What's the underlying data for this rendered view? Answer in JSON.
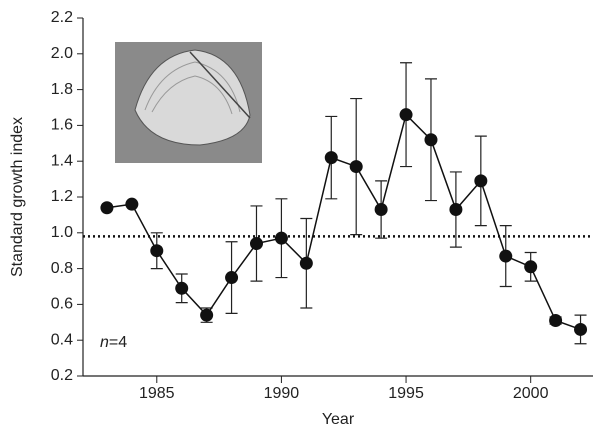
{
  "chart_data": {
    "type": "line_errorbar",
    "xlabel": "Year",
    "ylabel": "Standard growth index",
    "annotation": [
      "n",
      "=4"
    ],
    "x": [
      1983,
      1984,
      1985,
      1986,
      1987,
      1988,
      1989,
      1990,
      1991,
      1992,
      1993,
      1994,
      1995,
      1996,
      1997,
      1998,
      1999,
      2000,
      2001,
      2002
    ],
    "values": [
      1.14,
      1.16,
      0.9,
      0.69,
      0.54,
      0.75,
      0.94,
      0.97,
      0.83,
      1.42,
      1.37,
      1.13,
      1.66,
      1.52,
      1.13,
      1.29,
      0.87,
      0.81,
      0.51,
      0.46
    ],
    "errors": [
      null,
      null,
      0.1,
      0.08,
      0.04,
      0.2,
      0.21,
      0.22,
      0.25,
      0.23,
      0.38,
      0.16,
      0.29,
      0.34,
      0.21,
      0.25,
      0.17,
      0.08,
      0.02,
      0.08
    ],
    "color": "#111111",
    "reference_line": 0.98,
    "xlim": [
      1982.04,
      2002.5
    ],
    "xticks": [
      1985,
      1990,
      1995,
      2000
    ],
    "ylim": [
      0.2,
      2.2
    ],
    "yticks": [
      {
        "value": 0.2,
        "label": "0.2"
      },
      {
        "value": 0.4,
        "label": "0.4"
      },
      {
        "value": 0.6,
        "label": "0.6"
      },
      {
        "value": 0.8,
        "label": "0.8"
      },
      {
        "value": 1.0,
        "label": "1.0"
      },
      {
        "value": 1.2,
        "label": "1.2"
      },
      {
        "value": 1.4,
        "label": "1.4"
      },
      {
        "value": 1.6,
        "label": "1.6"
      },
      {
        "value": 1.8,
        "label": "1.8"
      },
      {
        "value": 2.0,
        "label": "2.0"
      },
      {
        "value": 2.2,
        "label": "2.2"
      }
    ]
  }
}
